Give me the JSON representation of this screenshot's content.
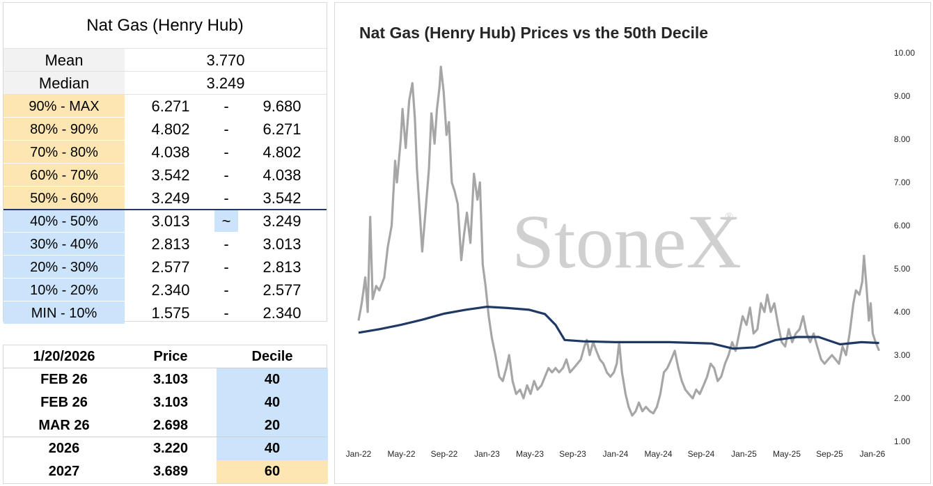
{
  "stats_table": {
    "title": "Nat Gas (Henry Hub)",
    "mean_label": "Mean",
    "mean_value": "3.770",
    "median_label": "Median",
    "median_value": "3.249",
    "deciles": [
      {
        "label": "90% - MAX",
        "low": "6.271",
        "sep": "-",
        "high": "9.680",
        "band": "upper"
      },
      {
        "label": "80% - 90%",
        "low": "4.802",
        "sep": "-",
        "high": "6.271",
        "band": "upper"
      },
      {
        "label": "70% - 80%",
        "low": "4.038",
        "sep": "-",
        "high": "4.802",
        "band": "upper"
      },
      {
        "label": "60% - 70%",
        "low": "3.542",
        "sep": "-",
        "high": "4.038",
        "band": "upper"
      },
      {
        "label": "50% - 60%",
        "low": "3.249",
        "sep": "-",
        "high": "3.542",
        "band": "upper"
      },
      {
        "label": "40% - 50%",
        "low": "3.013",
        "sep": "~",
        "high": "3.249",
        "band": "lower"
      },
      {
        "label": "30% - 40%",
        "low": "2.813",
        "sep": "-",
        "high": "3.013",
        "band": "lower"
      },
      {
        "label": "20% - 30%",
        "low": "2.577",
        "sep": "-",
        "high": "2.813",
        "band": "lower"
      },
      {
        "label": "10% - 20%",
        "low": "2.340",
        "sep": "-",
        "high": "2.577",
        "band": "lower"
      },
      {
        "label": "MIN - 10%",
        "low": "1.575",
        "sep": "-",
        "high": "2.340",
        "band": "lower"
      }
    ]
  },
  "snapshot_table": {
    "header": [
      "1/20/2026",
      "Price",
      "Decile"
    ],
    "rows": [
      {
        "contract": "FEB 26",
        "price": "3.103",
        "decile": "40",
        "band": "lower"
      },
      {
        "contract": "FEB 26",
        "price": "3.103",
        "decile": "40",
        "band": "lower"
      },
      {
        "contract": "MAR 26",
        "price": "2.698",
        "decile": "20",
        "band": "lower"
      },
      {
        "contract": "2026",
        "price": "3.220",
        "decile": "40",
        "band": "lower"
      },
      {
        "contract": "2027",
        "price": "3.689",
        "decile": "60",
        "band": "upper"
      }
    ]
  },
  "colors": {
    "upper_band": "#fde6b2",
    "lower_band": "#cce4fb",
    "price_line": "#a6a6a6",
    "median_line": "#1f3864",
    "watermark": "#d0d0d0"
  },
  "chart_data": {
    "type": "line",
    "title": "Nat Gas (Henry Hub) Prices vs the 50th Decile",
    "watermark": "StoneX",
    "watermark_mark": "®",
    "x_tick_labels": [
      "Jan-22",
      "May-22",
      "Sep-22",
      "Jan-23",
      "May-23",
      "Sep-23",
      "Jan-24",
      "May-24",
      "Sep-24",
      "Jan-25",
      "May-25",
      "Sep-25",
      "Jan-26"
    ],
    "y_tick_labels": [
      "1.00",
      "2.00",
      "3.00",
      "4.00",
      "5.00",
      "6.00",
      "7.00",
      "8.00",
      "9.00",
      "10.00"
    ],
    "ylim": [
      1,
      10
    ],
    "y_axis_side": "right",
    "x_domain_months": [
      "2022-01",
      "2026-01"
    ],
    "series": [
      {
        "values": [
          {
            "x": "2022-01-01",
            "y": 3.8
          },
          {
            "x": "2022-01-10",
            "y": 4.2
          },
          {
            "x": "2022-01-20",
            "y": 4.8
          },
          {
            "x": "2022-01-27",
            "y": 4.0
          },
          {
            "x": "2022-02-03",
            "y": 6.2
          },
          {
            "x": "2022-02-10",
            "y": 4.3
          },
          {
            "x": "2022-02-20",
            "y": 4.6
          },
          {
            "x": "2022-03-01",
            "y": 4.5
          },
          {
            "x": "2022-03-15",
            "y": 4.8
          },
          {
            "x": "2022-03-25",
            "y": 5.5
          },
          {
            "x": "2022-04-05",
            "y": 6.0
          },
          {
            "x": "2022-04-15",
            "y": 7.5
          },
          {
            "x": "2022-04-20",
            "y": 7.0
          },
          {
            "x": "2022-05-01",
            "y": 8.0
          },
          {
            "x": "2022-05-06",
            "y": 8.7
          },
          {
            "x": "2022-05-15",
            "y": 7.8
          },
          {
            "x": "2022-05-25",
            "y": 8.9
          },
          {
            "x": "2022-06-03",
            "y": 9.3
          },
          {
            "x": "2022-06-10",
            "y": 8.5
          },
          {
            "x": "2022-06-16",
            "y": 7.3
          },
          {
            "x": "2022-06-24",
            "y": 6.3
          },
          {
            "x": "2022-07-01",
            "y": 5.4
          },
          {
            "x": "2022-07-10",
            "y": 6.3
          },
          {
            "x": "2022-07-20",
            "y": 7.3
          },
          {
            "x": "2022-07-27",
            "y": 8.6
          },
          {
            "x": "2022-08-05",
            "y": 7.9
          },
          {
            "x": "2022-08-12",
            "y": 8.7
          },
          {
            "x": "2022-08-19",
            "y": 9.2
          },
          {
            "x": "2022-08-23",
            "y": 9.68
          },
          {
            "x": "2022-08-31",
            "y": 9.1
          },
          {
            "x": "2022-09-08",
            "y": 8.1
          },
          {
            "x": "2022-09-15",
            "y": 8.4
          },
          {
            "x": "2022-09-23",
            "y": 7.0
          },
          {
            "x": "2022-10-01",
            "y": 6.8
          },
          {
            "x": "2022-10-10",
            "y": 6.5
          },
          {
            "x": "2022-10-20",
            "y": 5.2
          },
          {
            "x": "2022-10-28",
            "y": 5.8
          },
          {
            "x": "2022-11-05",
            "y": 6.3
          },
          {
            "x": "2022-11-15",
            "y": 5.6
          },
          {
            "x": "2022-11-25",
            "y": 7.2
          },
          {
            "x": "2022-12-05",
            "y": 6.6
          },
          {
            "x": "2022-12-12",
            "y": 7.0
          },
          {
            "x": "2022-12-20",
            "y": 5.1
          },
          {
            "x": "2022-12-28",
            "y": 4.6
          },
          {
            "x": "2023-01-06",
            "y": 3.9
          },
          {
            "x": "2023-01-15",
            "y": 3.4
          },
          {
            "x": "2023-01-25",
            "y": 3.0
          },
          {
            "x": "2023-02-05",
            "y": 2.5
          },
          {
            "x": "2023-02-15",
            "y": 2.4
          },
          {
            "x": "2023-02-25",
            "y": 2.7
          },
          {
            "x": "2023-03-05",
            "y": 3.0
          },
          {
            "x": "2023-03-15",
            "y": 2.4
          },
          {
            "x": "2023-03-25",
            "y": 2.1
          },
          {
            "x": "2023-04-05",
            "y": 2.2
          },
          {
            "x": "2023-04-15",
            "y": 2.0
          },
          {
            "x": "2023-04-25",
            "y": 2.3
          },
          {
            "x": "2023-05-05",
            "y": 2.1
          },
          {
            "x": "2023-05-15",
            "y": 2.4
          },
          {
            "x": "2023-05-25",
            "y": 2.2
          },
          {
            "x": "2023-06-05",
            "y": 2.3
          },
          {
            "x": "2023-06-15",
            "y": 2.5
          },
          {
            "x": "2023-06-25",
            "y": 2.7
          },
          {
            "x": "2023-07-05",
            "y": 2.6
          },
          {
            "x": "2023-07-15",
            "y": 2.7
          },
          {
            "x": "2023-07-25",
            "y": 2.6
          },
          {
            "x": "2023-08-05",
            "y": 2.7
          },
          {
            "x": "2023-08-15",
            "y": 2.9
          },
          {
            "x": "2023-08-25",
            "y": 2.6
          },
          {
            "x": "2023-09-05",
            "y": 2.7
          },
          {
            "x": "2023-09-15",
            "y": 2.8
          },
          {
            "x": "2023-09-25",
            "y": 2.9
          },
          {
            "x": "2023-10-05",
            "y": 3.2
          },
          {
            "x": "2023-10-12",
            "y": 3.35
          },
          {
            "x": "2023-10-20",
            "y": 3.0
          },
          {
            "x": "2023-10-30",
            "y": 3.3
          },
          {
            "x": "2023-11-08",
            "y": 3.1
          },
          {
            "x": "2023-11-18",
            "y": 2.9
          },
          {
            "x": "2023-11-28",
            "y": 2.8
          },
          {
            "x": "2023-12-08",
            "y": 2.6
          },
          {
            "x": "2023-12-18",
            "y": 2.5
          },
          {
            "x": "2023-12-28",
            "y": 2.6
          },
          {
            "x": "2024-01-05",
            "y": 2.8
          },
          {
            "x": "2024-01-12",
            "y": 3.3
          },
          {
            "x": "2024-01-20",
            "y": 2.6
          },
          {
            "x": "2024-01-30",
            "y": 2.1
          },
          {
            "x": "2024-02-08",
            "y": 1.8
          },
          {
            "x": "2024-02-18",
            "y": 1.6
          },
          {
            "x": "2024-02-28",
            "y": 1.7
          },
          {
            "x": "2024-03-08",
            "y": 1.9
          },
          {
            "x": "2024-03-18",
            "y": 1.7
          },
          {
            "x": "2024-03-28",
            "y": 1.8
          },
          {
            "x": "2024-04-08",
            "y": 1.7
          },
          {
            "x": "2024-04-18",
            "y": 1.65
          },
          {
            "x": "2024-04-28",
            "y": 1.8
          },
          {
            "x": "2024-05-08",
            "y": 2.1
          },
          {
            "x": "2024-05-18",
            "y": 2.6
          },
          {
            "x": "2024-05-28",
            "y": 2.7
          },
          {
            "x": "2024-06-08",
            "y": 2.9
          },
          {
            "x": "2024-06-18",
            "y": 3.1
          },
          {
            "x": "2024-06-28",
            "y": 2.7
          },
          {
            "x": "2024-07-08",
            "y": 2.4
          },
          {
            "x": "2024-07-18",
            "y": 2.2
          },
          {
            "x": "2024-07-28",
            "y": 2.1
          },
          {
            "x": "2024-08-08",
            "y": 2.0
          },
          {
            "x": "2024-08-18",
            "y": 2.2
          },
          {
            "x": "2024-08-28",
            "y": 2.1
          },
          {
            "x": "2024-09-08",
            "y": 2.3
          },
          {
            "x": "2024-09-18",
            "y": 2.5
          },
          {
            "x": "2024-09-28",
            "y": 2.8
          },
          {
            "x": "2024-10-08",
            "y": 2.7
          },
          {
            "x": "2024-10-18",
            "y": 2.4
          },
          {
            "x": "2024-10-28",
            "y": 2.5
          },
          {
            "x": "2024-11-08",
            "y": 2.8
          },
          {
            "x": "2024-11-18",
            "y": 3.0
          },
          {
            "x": "2024-11-28",
            "y": 3.3
          },
          {
            "x": "2024-12-08",
            "y": 3.1
          },
          {
            "x": "2024-12-18",
            "y": 3.5
          },
          {
            "x": "2024-12-28",
            "y": 3.9
          },
          {
            "x": "2025-01-08",
            "y": 3.7
          },
          {
            "x": "2025-01-18",
            "y": 4.1
          },
          {
            "x": "2025-01-28",
            "y": 3.5
          },
          {
            "x": "2025-02-08",
            "y": 3.6
          },
          {
            "x": "2025-02-18",
            "y": 4.2
          },
          {
            "x": "2025-02-28",
            "y": 4.0
          },
          {
            "x": "2025-03-08",
            "y": 4.4
          },
          {
            "x": "2025-03-18",
            "y": 4.0
          },
          {
            "x": "2025-03-28",
            "y": 4.2
          },
          {
            "x": "2025-04-08",
            "y": 3.7
          },
          {
            "x": "2025-04-18",
            "y": 3.3
          },
          {
            "x": "2025-04-28",
            "y": 3.2
          },
          {
            "x": "2025-05-08",
            "y": 3.6
          },
          {
            "x": "2025-05-18",
            "y": 3.3
          },
          {
            "x": "2025-05-28",
            "y": 3.5
          },
          {
            "x": "2025-06-08",
            "y": 3.6
          },
          {
            "x": "2025-06-18",
            "y": 3.9
          },
          {
            "x": "2025-06-28",
            "y": 3.5
          },
          {
            "x": "2025-07-08",
            "y": 3.3
          },
          {
            "x": "2025-07-18",
            "y": 3.5
          },
          {
            "x": "2025-07-28",
            "y": 3.2
          },
          {
            "x": "2025-08-08",
            "y": 2.9
          },
          {
            "x": "2025-08-18",
            "y": 2.8
          },
          {
            "x": "2025-08-28",
            "y": 2.9
          },
          {
            "x": "2025-09-08",
            "y": 3.0
          },
          {
            "x": "2025-09-18",
            "y": 2.9
          },
          {
            "x": "2025-09-28",
            "y": 2.8
          },
          {
            "x": "2025-10-08",
            "y": 3.2
          },
          {
            "x": "2025-10-18",
            "y": 3.0
          },
          {
            "x": "2025-10-28",
            "y": 3.5
          },
          {
            "x": "2025-11-08",
            "y": 4.2
          },
          {
            "x": "2025-11-15",
            "y": 4.5
          },
          {
            "x": "2025-11-25",
            "y": 4.4
          },
          {
            "x": "2025-12-03",
            "y": 4.7
          },
          {
            "x": "2025-12-08",
            "y": 5.3
          },
          {
            "x": "2025-12-15",
            "y": 4.6
          },
          {
            "x": "2025-12-22",
            "y": 3.8
          },
          {
            "x": "2025-12-27",
            "y": 4.2
          },
          {
            "x": "2026-01-02",
            "y": 3.5
          },
          {
            "x": "2026-01-10",
            "y": 3.3
          },
          {
            "x": "2026-01-20",
            "y": 3.1
          }
        ]
      },
      {
        "values": [
          {
            "x": "2022-01-01",
            "y": 3.52
          },
          {
            "x": "2022-03-01",
            "y": 3.6
          },
          {
            "x": "2022-05-01",
            "y": 3.7
          },
          {
            "x": "2022-07-01",
            "y": 3.82
          },
          {
            "x": "2022-09-01",
            "y": 3.96
          },
          {
            "x": "2022-11-01",
            "y": 4.05
          },
          {
            "x": "2023-01-01",
            "y": 4.12
          },
          {
            "x": "2023-03-01",
            "y": 4.09
          },
          {
            "x": "2023-05-01",
            "y": 4.05
          },
          {
            "x": "2023-06-15",
            "y": 3.95
          },
          {
            "x": "2023-07-15",
            "y": 3.7
          },
          {
            "x": "2023-08-10",
            "y": 3.35
          },
          {
            "x": "2023-10-01",
            "y": 3.32
          },
          {
            "x": "2024-01-01",
            "y": 3.3
          },
          {
            "x": "2024-06-01",
            "y": 3.3
          },
          {
            "x": "2024-10-01",
            "y": 3.27
          },
          {
            "x": "2024-12-01",
            "y": 3.15
          },
          {
            "x": "2025-02-01",
            "y": 3.18
          },
          {
            "x": "2025-04-01",
            "y": 3.35
          },
          {
            "x": "2025-06-01",
            "y": 3.42
          },
          {
            "x": "2025-08-01",
            "y": 3.42
          },
          {
            "x": "2025-10-01",
            "y": 3.25
          },
          {
            "x": "2025-12-01",
            "y": 3.3
          },
          {
            "x": "2026-01-20",
            "y": 3.28
          }
        ]
      }
    ]
  }
}
